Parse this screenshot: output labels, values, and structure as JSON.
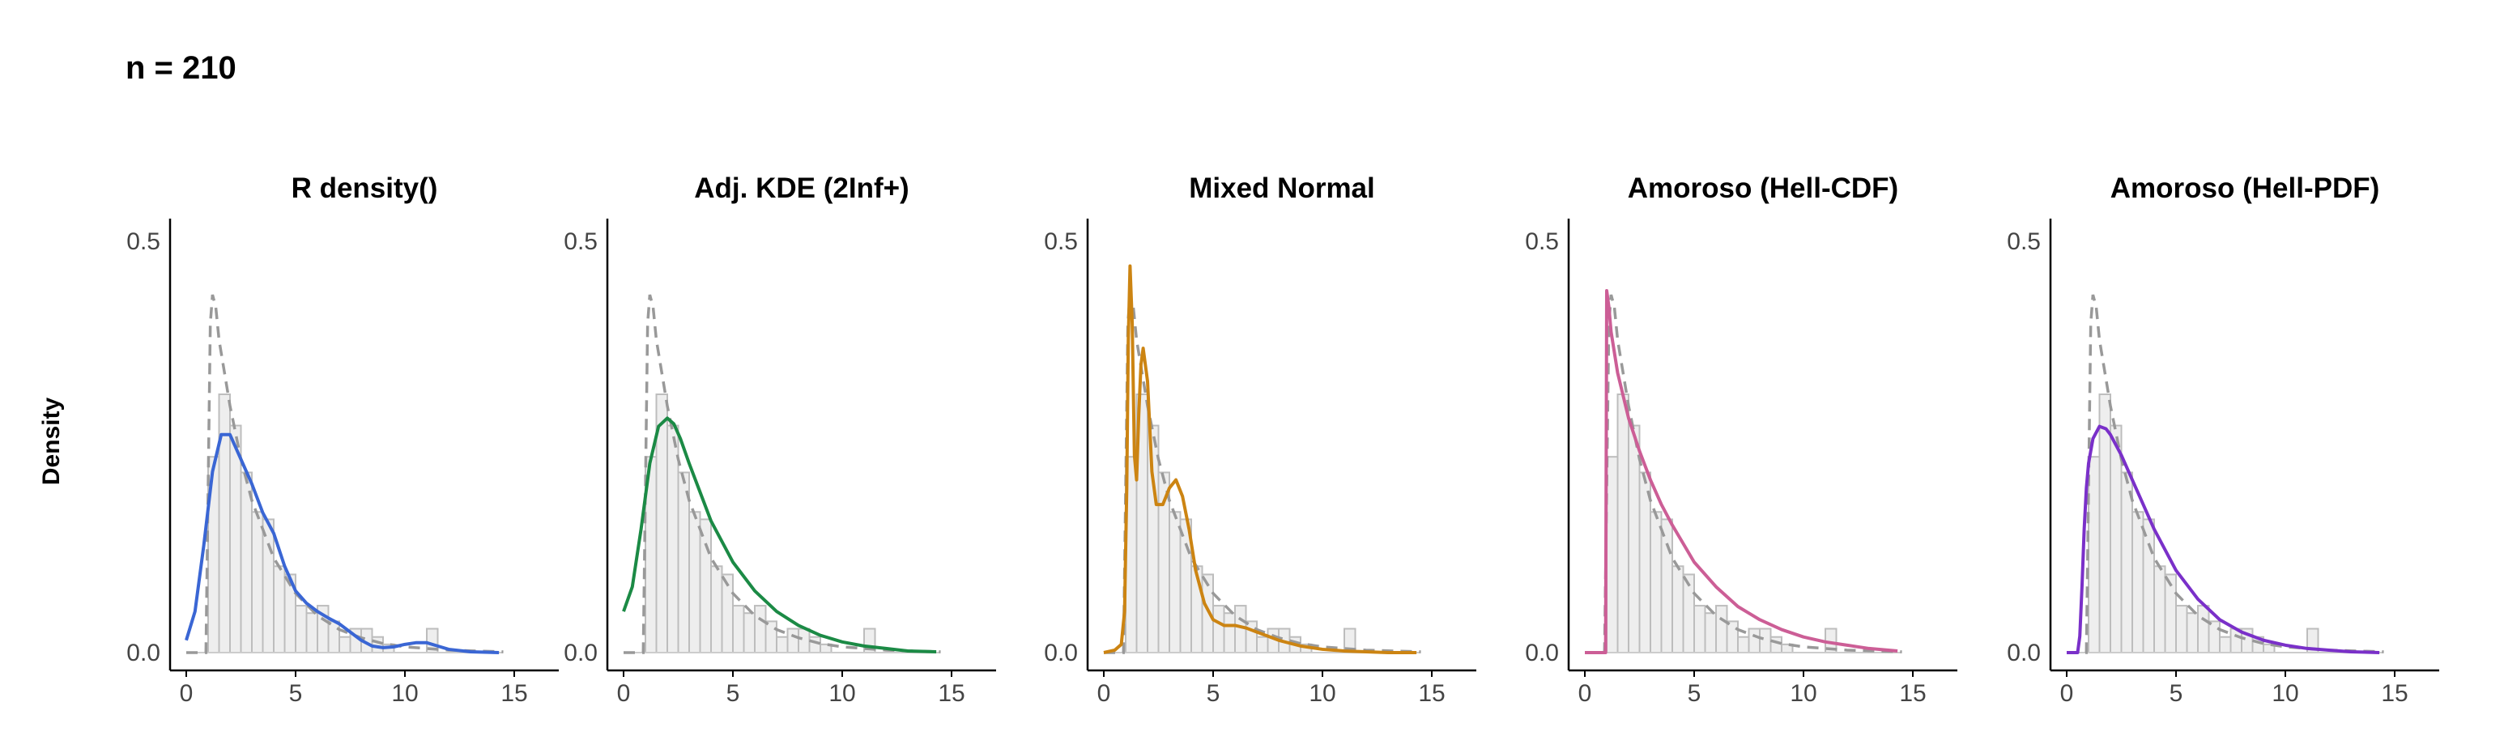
{
  "figure": {
    "title": "n = 210",
    "y_label": "Density"
  },
  "colors": {
    "histogram_fill": "#eeeeee",
    "histogram_stroke": "#bdbdbd",
    "reference_dashed": "#999999",
    "axis": "#000000"
  },
  "chart_data": [
    {
      "type": "line",
      "title": "R density()",
      "color": "#3a66d4",
      "xlim": [
        0,
        15
      ],
      "ylim": [
        0,
        0.5
      ],
      "x_ticks": [
        "0",
        "5",
        "10",
        "15"
      ],
      "y_ticks": [
        "0.0",
        "0.5"
      ],
      "histogram": {
        "bin_width": 0.5,
        "start": 1.0,
        "values": [
          0.238,
          0.314,
          0.276,
          0.219,
          0.171,
          0.162,
          0.105,
          0.095,
          0.057,
          0.048,
          0.057,
          0.038,
          0.019,
          0.029,
          0.029,
          0.019,
          0.01,
          0.0,
          0.0,
          0.0,
          0.029
        ]
      },
      "reference_curve": {
        "x": [
          0.0,
          0.9,
          1.0,
          1.1,
          1.2,
          1.35,
          1.5,
          2,
          2.5,
          3,
          4,
          5,
          6,
          7,
          8,
          9,
          10,
          12,
          14.5
        ],
        "y": [
          0,
          0,
          0.2,
          0.4,
          0.435,
          0.42,
          0.38,
          0.3,
          0.235,
          0.185,
          0.115,
          0.072,
          0.045,
          0.028,
          0.018,
          0.011,
          0.007,
          0.003,
          0.001
        ]
      },
      "series": [
        {
          "x": [
            0.0,
            0.4,
            0.8,
            1.2,
            1.6,
            2.0,
            2.5,
            3.0,
            3.5,
            4.0,
            4.5,
            5.0,
            5.5,
            6.0,
            6.5,
            7.0,
            7.5,
            8.0,
            8.5,
            9.0,
            9.5,
            10.0,
            10.5,
            11.0,
            11.5,
            12.0,
            13.0,
            14.3
          ],
          "y": [
            0.015,
            0.05,
            0.13,
            0.22,
            0.265,
            0.265,
            0.235,
            0.205,
            0.17,
            0.145,
            0.105,
            0.075,
            0.06,
            0.05,
            0.042,
            0.035,
            0.025,
            0.015,
            0.008,
            0.006,
            0.007,
            0.01,
            0.012,
            0.012,
            0.008,
            0.004,
            0.001,
            0.0
          ]
        }
      ]
    },
    {
      "type": "line",
      "title": "Adj. KDE (2Inf+)",
      "color": "#1b8a45",
      "xlim": [
        0,
        15
      ],
      "ylim": [
        0,
        0.5
      ],
      "x_ticks": [
        "0",
        "5",
        "10",
        "15"
      ],
      "y_ticks": [
        "0.0",
        "0.5"
      ],
      "histogram": {
        "bin_width": 0.5,
        "start": 1.0,
        "values": [
          0.238,
          0.314,
          0.276,
          0.219,
          0.171,
          0.162,
          0.105,
          0.095,
          0.057,
          0.048,
          0.057,
          0.038,
          0.019,
          0.029,
          0.029,
          0.019,
          0.01,
          0.0,
          0.0,
          0.0,
          0.029
        ]
      },
      "reference_curve": {
        "x": [
          0.0,
          0.9,
          1.0,
          1.1,
          1.2,
          1.35,
          1.5,
          2,
          2.5,
          3,
          4,
          5,
          6,
          7,
          8,
          9,
          10,
          12,
          14.5
        ],
        "y": [
          0,
          0,
          0.2,
          0.4,
          0.435,
          0.42,
          0.38,
          0.3,
          0.235,
          0.185,
          0.115,
          0.072,
          0.045,
          0.028,
          0.018,
          0.011,
          0.007,
          0.003,
          0.001
        ]
      },
      "series": [
        {
          "x": [
            0.0,
            0.4,
            0.8,
            1.2,
            1.6,
            2.0,
            2.3,
            2.6,
            3.0,
            3.5,
            4.0,
            5.0,
            6.0,
            7.0,
            8.0,
            9.0,
            10.0,
            11.0,
            12.0,
            13.0,
            14.3
          ],
          "y": [
            0.05,
            0.08,
            0.15,
            0.23,
            0.275,
            0.285,
            0.278,
            0.26,
            0.23,
            0.195,
            0.16,
            0.11,
            0.075,
            0.05,
            0.033,
            0.021,
            0.013,
            0.008,
            0.005,
            0.002,
            0.001
          ]
        }
      ]
    },
    {
      "type": "line",
      "title": "Mixed Normal",
      "color": "#cc8412",
      "xlim": [
        0,
        15
      ],
      "ylim": [
        0,
        0.5
      ],
      "x_ticks": [
        "0",
        "5",
        "10",
        "15"
      ],
      "y_ticks": [
        "0.0",
        "0.5"
      ],
      "histogram": {
        "bin_width": 0.5,
        "start": 1.0,
        "values": [
          0.238,
          0.314,
          0.276,
          0.219,
          0.171,
          0.162,
          0.105,
          0.095,
          0.057,
          0.048,
          0.057,
          0.038,
          0.019,
          0.029,
          0.029,
          0.019,
          0.01,
          0.0,
          0.0,
          0.0,
          0.029
        ]
      },
      "reference_curve": {
        "x": [
          0.0,
          0.9,
          1.0,
          1.1,
          1.2,
          1.35,
          1.5,
          2,
          2.5,
          3,
          4,
          5,
          6,
          7,
          8,
          9,
          10,
          12,
          14.5
        ],
        "y": [
          0,
          0,
          0.2,
          0.4,
          0.435,
          0.42,
          0.38,
          0.3,
          0.235,
          0.185,
          0.115,
          0.072,
          0.045,
          0.028,
          0.018,
          0.011,
          0.007,
          0.003,
          0.001
        ]
      },
      "series": [
        {
          "x": [
            0.0,
            0.5,
            0.8,
            0.95,
            1.05,
            1.12,
            1.2,
            1.3,
            1.4,
            1.5,
            1.6,
            1.7,
            1.8,
            2.0,
            2.2,
            2.4,
            2.7,
            3.0,
            3.3,
            3.6,
            3.9,
            4.2,
            4.6,
            5.0,
            5.5,
            6.0,
            6.5,
            7.0,
            7.5,
            8.0,
            9.0,
            10.0,
            11.0,
            12.0,
            13.0,
            14.3
          ],
          "y": [
            0.0,
            0.003,
            0.01,
            0.05,
            0.2,
            0.38,
            0.47,
            0.4,
            0.24,
            0.21,
            0.29,
            0.35,
            0.37,
            0.33,
            0.22,
            0.18,
            0.18,
            0.2,
            0.21,
            0.19,
            0.15,
            0.1,
            0.06,
            0.04,
            0.033,
            0.033,
            0.03,
            0.025,
            0.02,
            0.015,
            0.008,
            0.004,
            0.002,
            0.001,
            0.0,
            0.0
          ]
        }
      ]
    },
    {
      "type": "line",
      "title": "Amoroso (Hell-CDF)",
      "color": "#cc5e96",
      "xlim": [
        0,
        15
      ],
      "ylim": [
        0,
        0.5
      ],
      "x_ticks": [
        "0",
        "5",
        "10",
        "15"
      ],
      "y_ticks": [
        "0.0",
        "0.5"
      ],
      "histogram": {
        "bin_width": 0.5,
        "start": 1.0,
        "values": [
          0.238,
          0.314,
          0.276,
          0.219,
          0.171,
          0.162,
          0.105,
          0.095,
          0.057,
          0.048,
          0.057,
          0.038,
          0.019,
          0.029,
          0.029,
          0.019,
          0.01,
          0.0,
          0.0,
          0.0,
          0.029
        ]
      },
      "reference_curve": {
        "x": [
          0.0,
          0.9,
          1.0,
          1.1,
          1.2,
          1.35,
          1.5,
          2,
          2.5,
          3,
          4,
          5,
          6,
          7,
          8,
          9,
          10,
          12,
          14.5
        ],
        "y": [
          0,
          0,
          0.2,
          0.4,
          0.435,
          0.42,
          0.38,
          0.3,
          0.235,
          0.185,
          0.115,
          0.072,
          0.045,
          0.028,
          0.018,
          0.011,
          0.007,
          0.003,
          0.001
        ]
      },
      "series": [
        {
          "x": [
            0.0,
            0.95,
            1.0,
            1.1,
            1.2,
            1.5,
            2.0,
            2.5,
            3.0,
            3.5,
            4.0,
            5.0,
            6.0,
            7.0,
            8.0,
            9.0,
            10.0,
            11.0,
            12.0,
            13.0,
            14.3
          ],
          "y": [
            0.0,
            0.0,
            0.44,
            0.42,
            0.39,
            0.34,
            0.285,
            0.245,
            0.21,
            0.18,
            0.155,
            0.11,
            0.08,
            0.056,
            0.04,
            0.028,
            0.019,
            0.013,
            0.009,
            0.005,
            0.002
          ]
        }
      ]
    },
    {
      "type": "line",
      "title": "Amoroso (Hell-PDF)",
      "color": "#7a30c9",
      "xlim": [
        0,
        15
      ],
      "ylim": [
        0,
        0.5
      ],
      "x_ticks": [
        "0",
        "5",
        "10",
        "15"
      ],
      "y_ticks": [
        "0.0",
        "0.5"
      ],
      "histogram": {
        "bin_width": 0.5,
        "start": 1.0,
        "values": [
          0.238,
          0.314,
          0.276,
          0.219,
          0.171,
          0.162,
          0.105,
          0.095,
          0.057,
          0.048,
          0.057,
          0.038,
          0.019,
          0.029,
          0.029,
          0.019,
          0.01,
          0.0,
          0.0,
          0.0,
          0.029
        ]
      },
      "reference_curve": {
        "x": [
          0.0,
          0.9,
          1.0,
          1.1,
          1.2,
          1.35,
          1.5,
          2,
          2.5,
          3,
          4,
          5,
          6,
          7,
          8,
          9,
          10,
          12,
          14.5
        ],
        "y": [
          0,
          0,
          0.2,
          0.4,
          0.435,
          0.42,
          0.38,
          0.3,
          0.235,
          0.185,
          0.115,
          0.072,
          0.045,
          0.028,
          0.018,
          0.011,
          0.007,
          0.003,
          0.001
        ]
      },
      "series": [
        {
          "x": [
            0.0,
            0.5,
            0.6,
            0.7,
            0.8,
            0.9,
            1.0,
            1.2,
            1.5,
            1.8,
            2.0,
            2.5,
            3.0,
            3.5,
            4.0,
            5.0,
            6.0,
            7.0,
            8.0,
            9.0,
            10.0,
            11.0,
            12.0,
            13.0,
            14.3
          ],
          "y": [
            0.0,
            0.0,
            0.02,
            0.08,
            0.15,
            0.2,
            0.23,
            0.26,
            0.275,
            0.272,
            0.265,
            0.24,
            0.21,
            0.18,
            0.15,
            0.1,
            0.065,
            0.04,
            0.025,
            0.015,
            0.009,
            0.005,
            0.003,
            0.001,
            0.0
          ]
        }
      ]
    }
  ]
}
